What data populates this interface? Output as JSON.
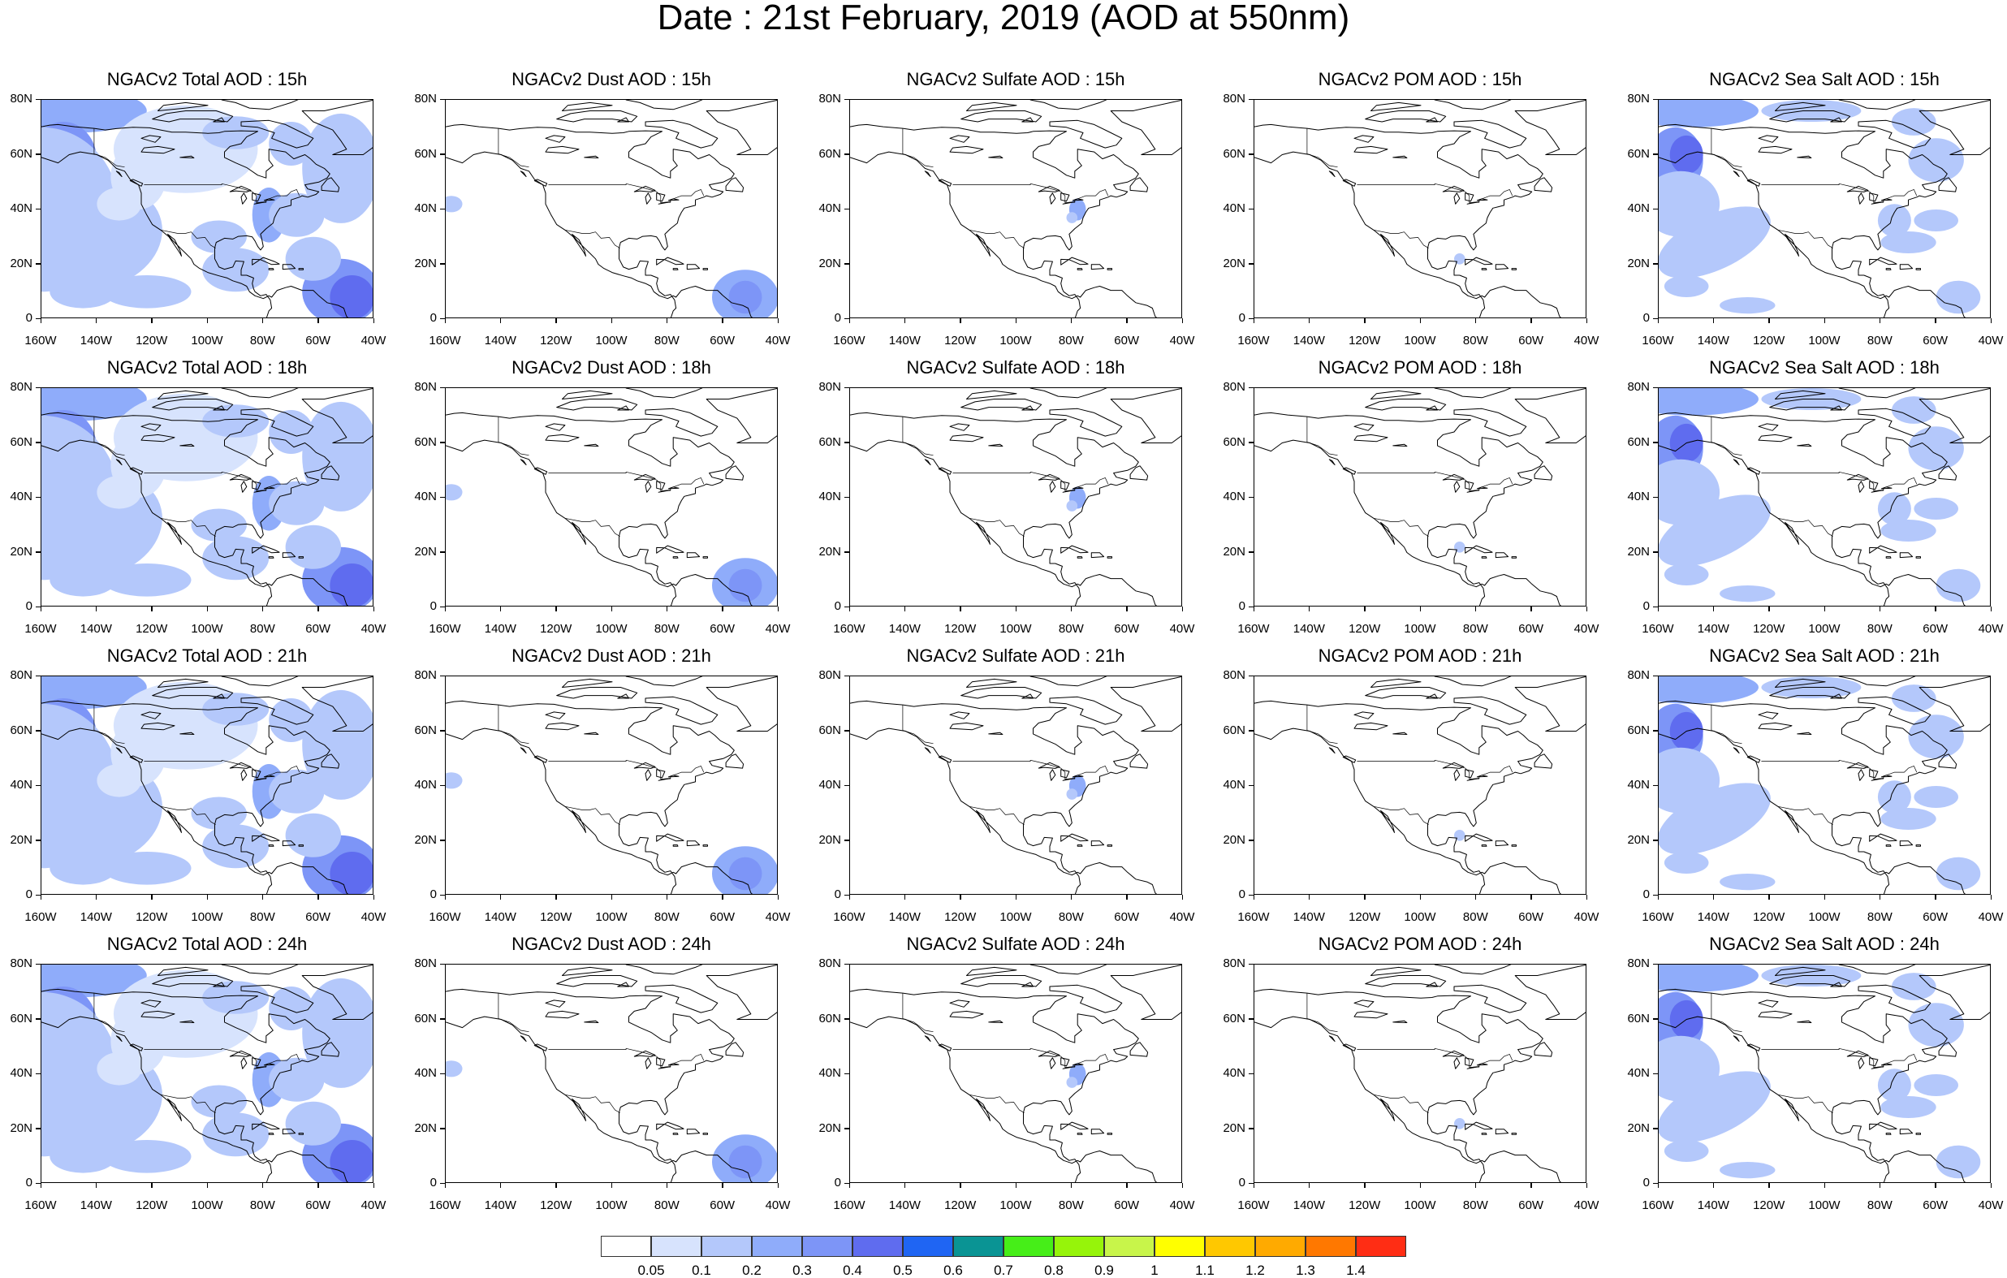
{
  "title": "Date : 21st February, 2019 (AOD at 550nm)",
  "lat_labels": [
    "80N",
    "60N",
    "40N",
    "20N",
    "0"
  ],
  "lon_labels": [
    "160W",
    "140W",
    "120W",
    "100W",
    "80W",
    "60W",
    "40W"
  ],
  "rows": [
    {
      "panels": [
        {
          "title": "NGACv2 Total AOD : 15h",
          "field": "total"
        },
        {
          "title": "NGACv2 Dust AOD : 15h",
          "field": "dust"
        },
        {
          "title": "NGACv2 Sulfate AOD : 15h",
          "field": "sulfate"
        },
        {
          "title": "NGACv2 POM AOD : 15h",
          "field": "pom"
        },
        {
          "title": "NGACv2 Sea Salt AOD : 15h",
          "field": "seasalt"
        }
      ]
    },
    {
      "panels": [
        {
          "title": "NGACv2 Total AOD : 18h",
          "field": "total"
        },
        {
          "title": "NGACv2 Dust AOD : 18h",
          "field": "dust"
        },
        {
          "title": "NGACv2 Sulfate AOD : 18h",
          "field": "sulfate"
        },
        {
          "title": "NGACv2 POM AOD : 18h",
          "field": "pom"
        },
        {
          "title": "NGACv2 Sea Salt AOD : 18h",
          "field": "seasalt"
        }
      ]
    },
    {
      "panels": [
        {
          "title": "NGACv2 Total AOD : 21h",
          "field": "total"
        },
        {
          "title": "NGACv2 Dust AOD : 21h",
          "field": "dust"
        },
        {
          "title": "NGACv2 Sulfate AOD : 21h",
          "field": "sulfate"
        },
        {
          "title": "NGACv2 POM AOD : 21h",
          "field": "pom"
        },
        {
          "title": "NGACv2 Sea Salt AOD : 21h",
          "field": "seasalt"
        }
      ]
    },
    {
      "panels": [
        {
          "title": "NGACv2 Total AOD : 24h",
          "field": "total"
        },
        {
          "title": "NGACv2 Dust AOD : 24h",
          "field": "dust"
        },
        {
          "title": "NGACv2 Sulfate AOD : 24h",
          "field": "sulfate"
        },
        {
          "title": "NGACv2 POM AOD : 24h",
          "field": "pom"
        },
        {
          "title": "NGACv2 Sea Salt  AOD : 24h",
          "field": "seasalt"
        }
      ]
    }
  ],
  "colorbar": {
    "colors": [
      "#ffffff",
      "#d7e3fd",
      "#b4c8fb",
      "#8facfa",
      "#7d95f7",
      "#5f6cef",
      "#1f65f3",
      "#0a9494",
      "#46ee18",
      "#96f40a",
      "#c8f54a",
      "#ffff00",
      "#ffc800",
      "#ffaa00",
      "#ff7800",
      "#ff2d14"
    ],
    "labels": [
      "0.05",
      "0.1",
      "0.2",
      "0.3",
      "0.4",
      "0.5",
      "0.6",
      "0.7",
      "0.8",
      "0.9",
      "1",
      "1.1",
      "1.2",
      "1.3",
      "1.4"
    ]
  }
}
